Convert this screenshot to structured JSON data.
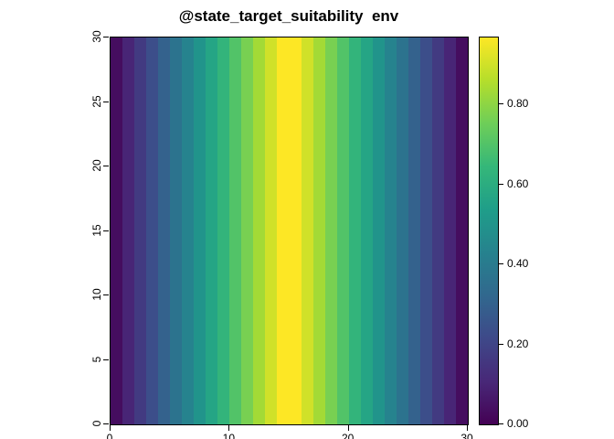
{
  "title": "@state_target_suitability  env",
  "background_color": "#ffffff",
  "chart_data": {
    "type": "heatmap",
    "title": "@state_target_suitability  env",
    "xlabel": "",
    "ylabel": "",
    "xlim": [
      0,
      30
    ],
    "ylim": [
      0,
      30
    ],
    "x_ticks": [
      0,
      10,
      20,
      30
    ],
    "x_tick_labels": [
      "0",
      "10",
      "20",
      "30"
    ],
    "y_ticks": [
      0,
      5,
      10,
      15,
      20,
      25,
      30
    ],
    "y_tick_labels": [
      "0",
      "5",
      "10",
      "15",
      "20",
      "25",
      "30"
    ],
    "n_cols": 30,
    "n_rows": 30,
    "value_varies_along": "x",
    "x_centers": [
      0.5,
      1.5,
      2.5,
      3.5,
      4.5,
      5.5,
      6.5,
      7.5,
      8.5,
      9.5,
      10.5,
      11.5,
      12.5,
      13.5,
      14.5,
      15.5,
      16.5,
      17.5,
      18.5,
      19.5,
      20.5,
      21.5,
      22.5,
      23.5,
      24.5,
      25.5,
      26.5,
      27.5,
      28.5,
      29.5
    ],
    "values": [
      0.033,
      0.1,
      0.167,
      0.233,
      0.3,
      0.367,
      0.433,
      0.5,
      0.567,
      0.633,
      0.7,
      0.767,
      0.833,
      0.9,
      0.967,
      0.967,
      0.9,
      0.833,
      0.767,
      0.7,
      0.633,
      0.567,
      0.5,
      0.433,
      0.367,
      0.3,
      0.233,
      0.167,
      0.1,
      0.033
    ],
    "zlim": [
      0,
      0.967
    ],
    "colorbar": {
      "ticks": [
        "0.00",
        "0.20",
        "0.40",
        "0.60",
        "0.80"
      ],
      "tick_values": [
        0.0,
        0.2,
        0.4,
        0.6,
        0.8
      ],
      "position": "right"
    },
    "colormap": {
      "name": "viridis",
      "stops": [
        "#440154",
        "#482878",
        "#3e4989",
        "#31688e",
        "#26828e",
        "#1f9e89",
        "#35b779",
        "#6ece58",
        "#b5de2b",
        "#fde725"
      ]
    },
    "grid": false,
    "legend_position": "right"
  }
}
